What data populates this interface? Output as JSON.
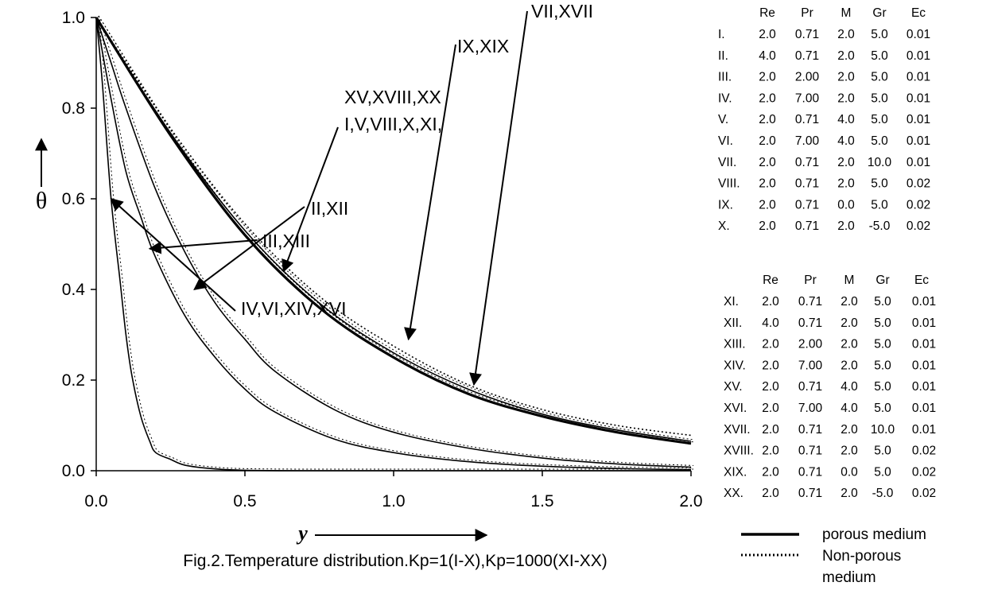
{
  "chart_data": {
    "type": "line",
    "caption": "Fig.2.Temperature distribution.Kp=1(I-X),Kp=1000(XI-XX)",
    "xlabel": "y",
    "ylabel": "θ",
    "xlim": [
      0,
      2.0
    ],
    "ylim": [
      0,
      1.0
    ],
    "x_ticks": [
      "0.0",
      "0.5",
      "1.0",
      "1.5",
      "2.0"
    ],
    "y_ticks": [
      "0.0",
      "0.2",
      "0.4",
      "0.6",
      "0.8",
      "1.0"
    ],
    "grid": false,
    "series": [
      {
        "name": "IV,VI,XIV,XVI",
        "style": "solid",
        "x": [
          0,
          0.02,
          0.05,
          0.08,
          0.1,
          0.12,
          0.15,
          0.18,
          0.2,
          0.25,
          0.3,
          0.4,
          0.5,
          0.7,
          1.0,
          1.5,
          2.0
        ],
        "y": [
          1.0,
          0.86,
          0.6,
          0.42,
          0.3,
          0.21,
          0.12,
          0.065,
          0.04,
          0.025,
          0.012,
          0.004,
          0.001,
          0,
          0,
          0,
          0
        ]
      },
      {
        "name": "III,XIII",
        "style": "solid",
        "x": [
          0,
          0.05,
          0.1,
          0.15,
          0.2,
          0.3,
          0.4,
          0.5,
          0.6,
          0.8,
          1.0,
          1.25,
          1.5,
          1.75,
          2.0
        ],
        "y": [
          1.0,
          0.82,
          0.66,
          0.56,
          0.47,
          0.34,
          0.25,
          0.18,
          0.13,
          0.07,
          0.04,
          0.02,
          0.01,
          0.005,
          0.002
        ]
      },
      {
        "name": "II,XII",
        "style": "solid",
        "x": [
          0,
          0.05,
          0.1,
          0.2,
          0.3,
          0.4,
          0.5,
          0.6,
          0.8,
          1.0,
          1.25,
          1.5,
          1.75,
          2.0
        ],
        "y": [
          1.0,
          0.9,
          0.8,
          0.62,
          0.48,
          0.37,
          0.29,
          0.22,
          0.135,
          0.085,
          0.05,
          0.028,
          0.015,
          0.008
        ]
      },
      {
        "name": "I,V,VIII,X,XI,XV,XVIII,XX",
        "style": "solid",
        "x": [
          0,
          0.25,
          0.5,
          0.75,
          1.0,
          1.25,
          1.5,
          1.75,
          2.0
        ],
        "y": [
          1.0,
          0.74,
          0.52,
          0.36,
          0.25,
          0.17,
          0.12,
          0.085,
          0.06
        ]
      },
      {
        "name": "IX,XIX",
        "style": "dotted",
        "x": [
          0,
          0.25,
          0.5,
          0.75,
          1.0,
          1.25,
          1.5,
          1.75,
          2.0
        ],
        "y": [
          1.0,
          0.755,
          0.545,
          0.385,
          0.275,
          0.19,
          0.135,
          0.1,
          0.078
        ]
      },
      {
        "name": "VII,XVII",
        "style": "solid",
        "x": [
          0,
          0.25,
          0.5,
          0.75,
          1.0,
          1.25,
          1.5,
          1.75,
          2.0
        ],
        "y": [
          1.0,
          0.745,
          0.53,
          0.37,
          0.26,
          0.18,
          0.125,
          0.09,
          0.065
        ]
      }
    ],
    "annotations": [
      {
        "text": "IV,VI,XIV,XVI",
        "arrow_to": [
          0.05,
          0.6
        ]
      },
      {
        "text": "III,XIII",
        "arrow_to": [
          0.18,
          0.49
        ]
      },
      {
        "text": "II,XII",
        "arrow_to": [
          0.33,
          0.4
        ]
      },
      {
        "text": "I,V,VIII,X,XI,",
        "text2": "XV,XVIII,XX",
        "arrow_to": [
          0.63,
          0.44
        ]
      },
      {
        "text": "IX,XIX",
        "arrow_to": [
          1.05,
          0.29
        ]
      },
      {
        "text": "VII,XVII",
        "arrow_to": [
          1.27,
          0.19
        ]
      }
    ],
    "table": {
      "header": [
        "Re",
        "Pr",
        "M",
        "Gr",
        "Ec"
      ],
      "rows": [
        {
          "label": "I.",
          "values": [
            "2.0",
            "0.71",
            "2.0",
            "5.0",
            "0.01"
          ]
        },
        {
          "label": "II.",
          "values": [
            "4.0",
            "0.71",
            "2.0",
            "5.0",
            "0.01"
          ]
        },
        {
          "label": "III.",
          "values": [
            "2.0",
            "2.00",
            "2.0",
            "5.0",
            "0.01"
          ]
        },
        {
          "label": "IV.",
          "values": [
            "2.0",
            "7.00",
            "2.0",
            "5.0",
            "0.01"
          ]
        },
        {
          "label": "V.",
          "values": [
            "2.0",
            "0.71",
            "4.0",
            "5.0",
            "0.01"
          ]
        },
        {
          "label": "VI.",
          "values": [
            "2.0",
            "7.00",
            "4.0",
            "5.0",
            "0.01"
          ]
        },
        {
          "label": "VII.",
          "values": [
            "2.0",
            "0.71",
            "2.0",
            "10.0",
            "0.01"
          ]
        },
        {
          "label": "VIII.",
          "values": [
            "2.0",
            "0.71",
            "2.0",
            "5.0",
            "0.02"
          ]
        },
        {
          "label": "IX.",
          "values": [
            "2.0",
            "0.71",
            "0.0",
            "5.0",
            "0.02"
          ]
        },
        {
          "label": "X.",
          "values": [
            "2.0",
            "0.71",
            "2.0",
            "-5.0",
            "0.02"
          ]
        }
      ],
      "header2": [
        "Re",
        "Pr",
        "M",
        "Gr",
        "Ec"
      ],
      "rows2": [
        {
          "label": "XI.",
          "values": [
            "2.0",
            "0.71",
            "2.0",
            "5.0",
            "0.01"
          ]
        },
        {
          "label": "XII.",
          "values": [
            "4.0",
            "0.71",
            "2.0",
            "5.0",
            "0.01"
          ]
        },
        {
          "label": "XIII.",
          "values": [
            "2.0",
            "2.00",
            "2.0",
            "5.0",
            "0.01"
          ]
        },
        {
          "label": "XIV.",
          "values": [
            "2.0",
            "7.00",
            "2.0",
            "5.0",
            "0.01"
          ]
        },
        {
          "label": "XV.",
          "values": [
            "2.0",
            "0.71",
            "4.0",
            "5.0",
            "0.01"
          ]
        },
        {
          "label": "XVI.",
          "values": [
            "2.0",
            "7.00",
            "4.0",
            "5.0",
            "0.01"
          ]
        },
        {
          "label": "XVII.",
          "values": [
            "2.0",
            "0.71",
            "2.0",
            "10.0",
            "0.01"
          ]
        },
        {
          "label": "XVIII.",
          "values": [
            "2.0",
            "0.71",
            "2.0",
            "5.0",
            "0.02"
          ]
        },
        {
          "label": "XIX.",
          "values": [
            "2.0",
            "0.71",
            "0.0",
            "5.0",
            "0.02"
          ]
        },
        {
          "label": "XX.",
          "values": [
            "2.0",
            "0.71",
            "2.0",
            "-5.0",
            "0.02"
          ]
        }
      ]
    },
    "legend": [
      {
        "label": "porous medium",
        "style": "solid"
      },
      {
        "label": "Non-porous",
        "label2": "medium",
        "style": "dotted"
      }
    ]
  }
}
